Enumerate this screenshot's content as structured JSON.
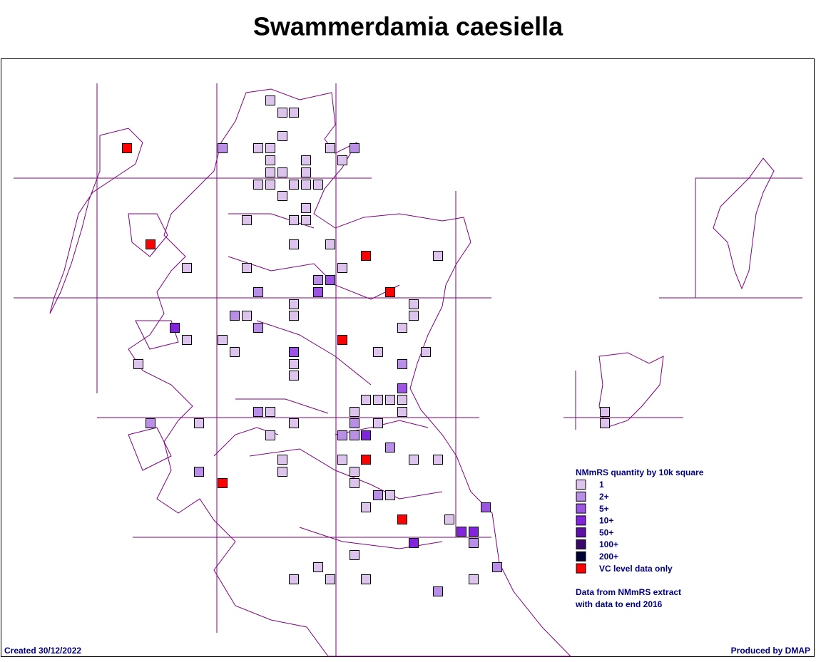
{
  "title": "Swammerdamia caesiella",
  "legend": {
    "title": "NMmRS quantity by 10k square",
    "items": [
      {
        "label": "1",
        "color": "#dcc4ec"
      },
      {
        "label": "2+",
        "color": "#b98ee6"
      },
      {
        "label": "5+",
        "color": "#9c55e3"
      },
      {
        "label": "10+",
        "color": "#8224dc"
      },
      {
        "label": "50+",
        "color": "#5e0fa8"
      },
      {
        "label": "100+",
        "color": "#38086a"
      },
      {
        "label": "200+",
        "color": "#000033"
      },
      {
        "label": "VC level data only",
        "color": "#ff0000"
      }
    ]
  },
  "note": [
    "Data from NMmRS extract",
    "with data to end 2016"
  ],
  "created": "Created 30/12/2022",
  "produced_by": "Produced by DMAP"
}
